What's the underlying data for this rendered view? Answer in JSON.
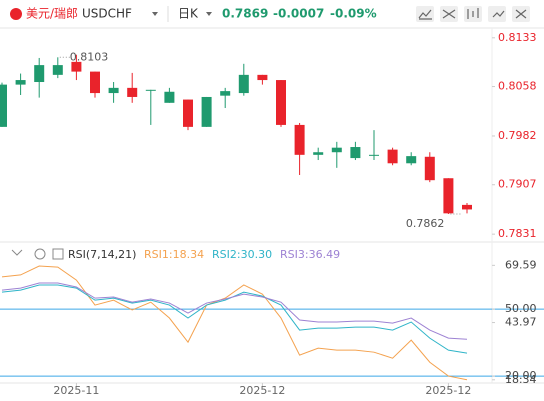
{
  "header": {
    "pair": "美元/瑞郎",
    "symbol": "USDCHF",
    "period": "日K",
    "price": "0.7869",
    "change": "-0.0007",
    "change_pct": "-0.09%"
  },
  "chart_data": [
    {
      "type": "candlestick",
      "categories": [
        null,
        null,
        null,
        null,
        "2025-11",
        null,
        null,
        null,
        null,
        null,
        null,
        null,
        null,
        null,
        "2025-12",
        null,
        null,
        null,
        null,
        null,
        null,
        null,
        null,
        null,
        "2025-12",
        null
      ],
      "open": [
        0.7996,
        0.8061,
        0.8065,
        0.8076,
        0.8096,
        0.8081,
        0.8048,
        0.8056,
        0.8053,
        0.8033,
        0.8038,
        0.7996,
        0.8044,
        0.8048,
        0.8076,
        0.8068,
        0.7999,
        0.7953,
        0.7957,
        0.7948,
        0.7953,
        0.7961,
        0.794,
        0.795,
        0.7917,
        0.7876
      ],
      "high": [
        0.8064,
        0.8078,
        0.8102,
        0.8103,
        0.8107,
        0.8081,
        0.8065,
        0.8079,
        0.8053,
        0.8056,
        0.8038,
        0.8042,
        0.8056,
        0.8093,
        0.8076,
        0.8068,
        0.8002,
        0.7964,
        0.7973,
        0.7973,
        0.7991,
        0.7964,
        0.7957,
        0.7957,
        0.7917,
        0.7879
      ],
      "low": [
        0.7996,
        0.8045,
        0.8041,
        0.8071,
        0.8068,
        0.8041,
        0.8033,
        0.8033,
        0.7999,
        0.8033,
        0.7991,
        0.7996,
        0.8025,
        0.8044,
        0.8061,
        0.7996,
        0.7922,
        0.7945,
        0.7933,
        0.7945,
        0.7945,
        0.7937,
        0.7937,
        0.7911,
        0.7862,
        0.7863
      ],
      "close": [
        0.8061,
        0.8068,
        0.8091,
        0.8091,
        0.8081,
        0.8048,
        0.8056,
        0.8042,
        0.8053,
        0.805,
        0.7996,
        0.8042,
        0.8051,
        0.8076,
        0.8068,
        0.7999,
        0.7953,
        0.7957,
        0.7964,
        0.7965,
        0.7953,
        0.794,
        0.7951,
        0.7914,
        0.7863,
        0.7869
      ],
      "up_color": "#1f9a6e",
      "down_color": "#e9232b",
      "ylim": [
        0.7822,
        0.8145
      ],
      "yticks": [
        0.8133,
        0.8058,
        0.7982,
        0.7907,
        0.7831
      ],
      "annotations": [
        {
          "index": 3,
          "value": 0.8103
        },
        {
          "index": 24,
          "value": 0.7862
        }
      ]
    },
    {
      "type": "line",
      "title": "RSI(7,14,21)",
      "series": [
        {
          "name": "RSI1:18.34",
          "color": "#f4a24f",
          "values": [
            64.4,
            65.3,
            69.3,
            68.8,
            63.0,
            51.8,
            54.0,
            49.6,
            53.1,
            46.0,
            35.2,
            51.8,
            54.9,
            60.8,
            56.7,
            46.0,
            29.4,
            32.5,
            31.6,
            31.6,
            30.7,
            28.0,
            36.1,
            26.2,
            20.0,
            18.34
          ]
        },
        {
          "name": "RSI2:30.30",
          "color": "#2fb4c8",
          "values": [
            57.6,
            58.5,
            60.8,
            60.8,
            59.4,
            54.0,
            54.9,
            52.7,
            54.0,
            51.8,
            46.0,
            51.8,
            54.0,
            57.6,
            55.8,
            51.8,
            40.6,
            41.5,
            41.5,
            41.9,
            41.9,
            40.6,
            44.2,
            37.0,
            31.6,
            30.3
          ]
        },
        {
          "name": "RSI3:36.49",
          "color": "#9d82d3",
          "values": [
            58.5,
            59.4,
            61.7,
            61.7,
            59.9,
            54.9,
            55.4,
            53.1,
            54.5,
            52.7,
            48.2,
            52.7,
            54.5,
            56.7,
            55.4,
            53.1,
            45.1,
            44.2,
            44.2,
            44.6,
            44.6,
            43.7,
            46.0,
            40.6,
            37.0,
            36.49
          ]
        }
      ],
      "ylim": [
        16.9,
        78.7
      ],
      "yticks": [
        69.59,
        {
          "value": 50,
          "label": "50.00"
        },
        43.97,
        {
          "value": 20,
          "label": "20.00"
        },
        18.34
      ],
      "levels": [
        50,
        20
      ],
      "level_color": "#3ba7e6"
    }
  ]
}
